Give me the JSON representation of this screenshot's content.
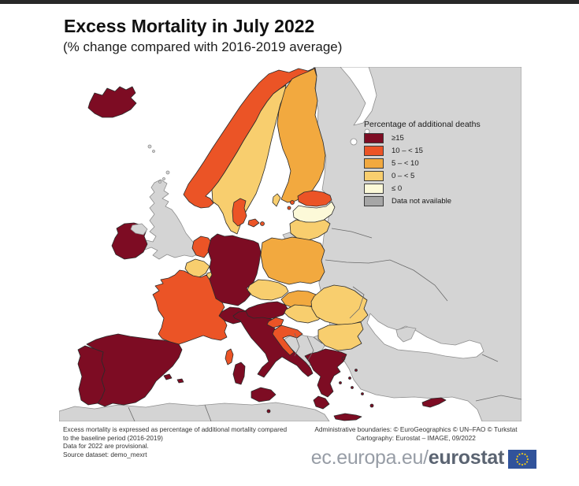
{
  "page": {
    "top_bar_color": "#282828"
  },
  "header": {
    "title": "Excess Mortality in July 2022",
    "subtitle": "(% change compared with 2016-2019 average)"
  },
  "legend": {
    "title": "Percentage of additional deaths",
    "items": [
      {
        "key": "ge15",
        "label": "≥15",
        "color": "#7D0C23"
      },
      {
        "key": "b10_15",
        "label": "10 – < 15",
        "color": "#EB5426"
      },
      {
        "key": "b5_10",
        "label": "5 – < 10",
        "color": "#F2A93F"
      },
      {
        "key": "b0_5",
        "label": "0 – < 5",
        "color": "#F8CE6E"
      },
      {
        "key": "le0",
        "label": "≤ 0",
        "color": "#FCF9D8"
      },
      {
        "key": "na",
        "label": "Data not available",
        "color": "#A6A6A6"
      }
    ]
  },
  "map": {
    "colors": {
      "sea": "#FFFFFF",
      "non_eu_land": "#D4D4D4",
      "coast_stroke": "#8E8E8E",
      "country_stroke": "#2B2B2B",
      "inner_border": "#6B6B6B"
    },
    "countries": [
      {
        "id": "eastern-landmass",
        "name": "Russia / Belarus / Ukraine / Turkey (data not available)",
        "key": "na",
        "layer": 1
      },
      {
        "id": "north-africa",
        "name": "North Africa (data not available)",
        "key": "na",
        "layer": 1
      },
      {
        "id": "balkans",
        "name": "Western Balkans (data not available)",
        "key": "na",
        "layer": 1
      },
      {
        "id": "uk",
        "name": "United Kingdom (data not available)",
        "key": "na",
        "layer": 1
      },
      {
        "id": "kaliningrad",
        "name": "Kaliningrad (data not available)",
        "key": "na",
        "layer": 1
      },
      {
        "id": "faroe-islands",
        "name": "Faroe Islands",
        "key": "na",
        "layer": 1
      },
      {
        "id": "shetland-islands",
        "name": "Shetland / Orkney",
        "key": "na",
        "layer": 1
      },
      {
        "id": "crimea",
        "name": "Crimea (data not available)",
        "key": "na",
        "layer": 2
      },
      {
        "id": "iceland",
        "name": "Iceland",
        "key": "ge15",
        "layer": 2
      },
      {
        "id": "norway",
        "name": "Norway",
        "key": "b10_15",
        "layer": 2
      },
      {
        "id": "sweden",
        "name": "Sweden",
        "key": "b0_5",
        "layer": 2
      },
      {
        "id": "gotland",
        "name": "Gotland (Sweden)",
        "key": "b0_5",
        "layer": 2
      },
      {
        "id": "finland",
        "name": "Finland",
        "key": "b5_10",
        "layer": 2
      },
      {
        "id": "denmark",
        "name": "Denmark",
        "key": "b10_15",
        "layer": 2
      },
      {
        "id": "estonia",
        "name": "Estonia",
        "key": "b10_15",
        "layer": 2
      },
      {
        "id": "latvia",
        "name": "Latvia",
        "key": "le0",
        "layer": 2
      },
      {
        "id": "lithuania",
        "name": "Lithuania",
        "key": "b0_5",
        "layer": 2
      },
      {
        "id": "ireland",
        "name": "Ireland",
        "key": "ge15",
        "layer": 2
      },
      {
        "id": "northern-ireland",
        "name": "Northern Ireland (data not available)",
        "key": "na",
        "layer": 2
      },
      {
        "id": "netherlands",
        "name": "Netherlands",
        "key": "b10_15",
        "layer": 2
      },
      {
        "id": "belgium",
        "name": "Belgium",
        "key": "b0_5",
        "layer": 2
      },
      {
        "id": "luxembourg",
        "name": "Luxembourg",
        "key": "b0_5",
        "layer": 2
      },
      {
        "id": "germany",
        "name": "Germany",
        "key": "ge15",
        "layer": 2
      },
      {
        "id": "poland",
        "name": "Poland",
        "key": "b5_10",
        "layer": 2
      },
      {
        "id": "czechia",
        "name": "Czechia",
        "key": "b0_5",
        "layer": 2
      },
      {
        "id": "slovakia",
        "name": "Slovakia",
        "key": "b5_10",
        "layer": 2
      },
      {
        "id": "austria",
        "name": "Austria",
        "key": "ge15",
        "layer": 2
      },
      {
        "id": "switzerland",
        "name": "Switzerland",
        "key": "ge15",
        "layer": 2
      },
      {
        "id": "france",
        "name": "France",
        "key": "b10_15",
        "layer": 2
      },
      {
        "id": "corsica",
        "name": "Corsica (France)",
        "key": "b10_15",
        "layer": 2
      },
      {
        "id": "sardinia",
        "name": "Sardinia (Italy)",
        "key": "ge15",
        "layer": 2
      },
      {
        "id": "spain",
        "name": "Spain",
        "key": "ge15",
        "layer": 2
      },
      {
        "id": "portugal",
        "name": "Portugal",
        "key": "ge15",
        "layer": 2
      },
      {
        "id": "balearic-islands",
        "name": "Balearic Islands (Spain)",
        "key": "ge15",
        "layer": 2
      },
      {
        "id": "italy",
        "name": "Italy",
        "key": "ge15",
        "layer": 2
      },
      {
        "id": "sicily",
        "name": "Sicily (Italy)",
        "key": "ge15",
        "layer": 2
      },
      {
        "id": "malta",
        "name": "Malta",
        "key": "ge15",
        "layer": 2
      },
      {
        "id": "slovenia",
        "name": "Slovenia",
        "key": "b10_15",
        "layer": 2
      },
      {
        "id": "croatia",
        "name": "Croatia",
        "key": "b10_15",
        "layer": 2
      },
      {
        "id": "hungary",
        "name": "Hungary",
        "key": "b0_5",
        "layer": 2
      },
      {
        "id": "romania",
        "name": "Romania",
        "key": "b0_5",
        "layer": 2
      },
      {
        "id": "bulgaria",
        "name": "Bulgaria",
        "key": "b0_5",
        "layer": 2
      },
      {
        "id": "greece",
        "name": "Greece",
        "key": "ge15",
        "layer": 2
      },
      {
        "id": "cyprus",
        "name": "Cyprus",
        "key": "ge15",
        "layer": 2
      }
    ]
  },
  "footnotes": {
    "left": [
      "Excess mortality is expressed as percentage of additional mortality compared",
      "to the baseline period (2016-2019)",
      "Data for 2022 are provisional.",
      "Source dataset: demo_mexrt"
    ],
    "right": [
      "Administrative boundaries: © EuroGeographics © UN–FAO © Turkstat",
      "Cartography: Eurostat – IMAGE, 09/2022"
    ]
  },
  "branding": {
    "url_prefix": "ec.europa.eu/",
    "url_bold": "eurostat",
    "flag_color": "#31539B",
    "star_color": "#E8C51E"
  }
}
